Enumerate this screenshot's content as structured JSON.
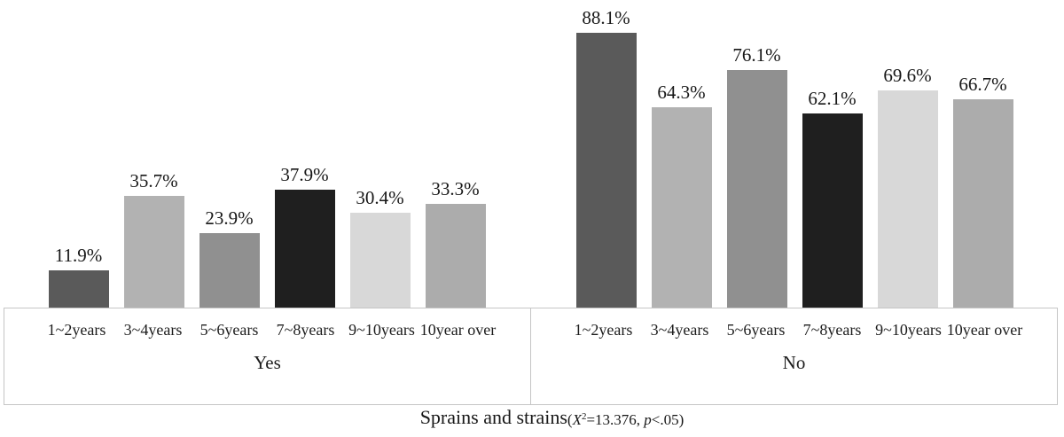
{
  "chart_data": {
    "type": "bar",
    "title": "Sprains and strains",
    "stat_annotation": {
      "open": "(",
      "chi": "X",
      "chi_sup": "2",
      "mid": "=13.376, ",
      "p": "p",
      "close": "<.05)"
    },
    "categories": [
      "1~2years",
      "3~4years",
      "5~6years",
      "7~8years",
      "9~10years",
      "10year over"
    ],
    "series": [
      {
        "name": "Yes",
        "values": [
          11.9,
          35.7,
          23.9,
          37.9,
          30.4,
          33.3
        ]
      },
      {
        "name": "No",
        "values": [
          88.1,
          64.3,
          76.1,
          62.1,
          69.6,
          66.7
        ]
      }
    ],
    "value_suffix": "%",
    "ylim": [
      0,
      100
    ],
    "grid": false,
    "legend_position": "none",
    "bar_colors": [
      "#5a5a5a",
      "#b2b2b2",
      "#909090",
      "#1f1f1f",
      "#d8d8d8",
      "#acacac"
    ],
    "axis_border_color": "#c5c5c5"
  }
}
